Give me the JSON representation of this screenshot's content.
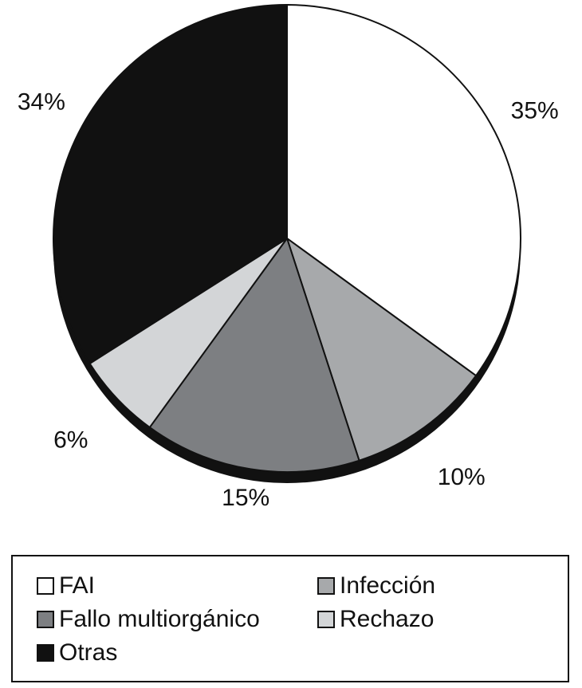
{
  "chart_data": {
    "type": "pie",
    "categories": [
      "FAI",
      "Infección",
      "Fallo multiorgánico",
      "Rechazo",
      "Otras"
    ],
    "values": [
      35,
      10,
      15,
      6,
      34
    ],
    "labels": [
      "35%",
      "10%",
      "15%",
      "6%",
      "34%"
    ],
    "colors": [
      "#ffffff",
      "#a7a9ab",
      "#7d7f82",
      "#d3d5d7",
      "#111111"
    ],
    "title": "",
    "legend_position": "bottom",
    "start_angle": "12 o'clock, clockwise"
  },
  "legend": {
    "items": [
      {
        "label": "FAI",
        "color": "#ffffff"
      },
      {
        "label": "Infección",
        "color": "#a7a9ab"
      },
      {
        "label": "Fallo multiorgánico",
        "color": "#7d7f82"
      },
      {
        "label": "Rechazo",
        "color": "#d3d5d7"
      },
      {
        "label": "Otras",
        "color": "#111111"
      }
    ]
  }
}
